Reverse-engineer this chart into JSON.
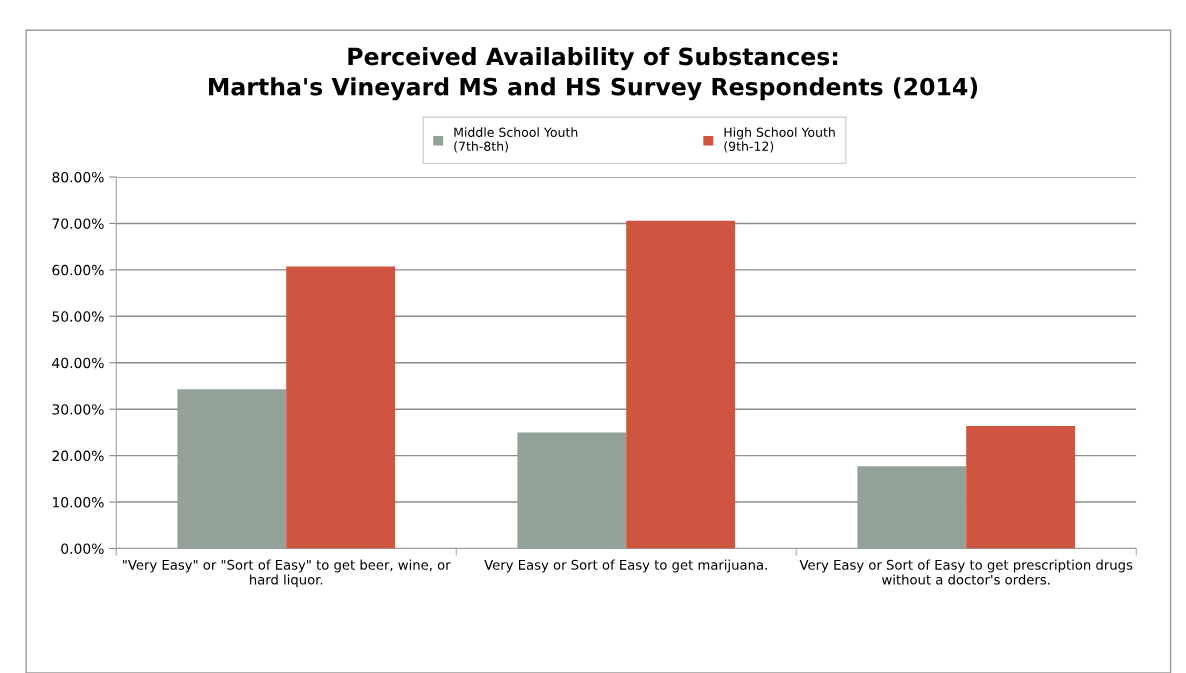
{
  "chart_data": {
    "type": "bar",
    "title": "Perceived Availability of Substances:\nMartha's Vineyard MS and HS Survey Respondents (2014)",
    "categories": [
      "\"Very Easy\" or \"Sort of Easy\" to get beer, wine, or\nhard liquor.",
      "Very Easy or Sort of Easy to get marijuana.",
      "Very Easy or Sort of Easy to get prescription drugs\nwithout a doctor's orders."
    ],
    "series": [
      {
        "name": "Middle School Youth\n(7th-8th)",
        "color": "#93a298",
        "values": [
          34.3,
          25.0,
          17.7
        ]
      },
      {
        "name": "High School Youth\n(9th-12)",
        "color": "#ce5540",
        "values": [
          60.7,
          70.6,
          26.4
        ]
      }
    ],
    "ylim": [
      0,
      80
    ],
    "yticks": [
      {
        "value": 0,
        "label": "0.00%"
      },
      {
        "value": 10,
        "label": "10.00%"
      },
      {
        "value": 20,
        "label": "20.00%"
      },
      {
        "value": 30,
        "label": "30.00%"
      },
      {
        "value": 40,
        "label": "40.00%"
      },
      {
        "value": 50,
        "label": "50.00%"
      },
      {
        "value": 60,
        "label": "60.00%"
      },
      {
        "value": 70,
        "label": "70.00%"
      },
      {
        "value": 80,
        "label": "80.00%"
      }
    ],
    "grid": "y",
    "legend": "top"
  }
}
